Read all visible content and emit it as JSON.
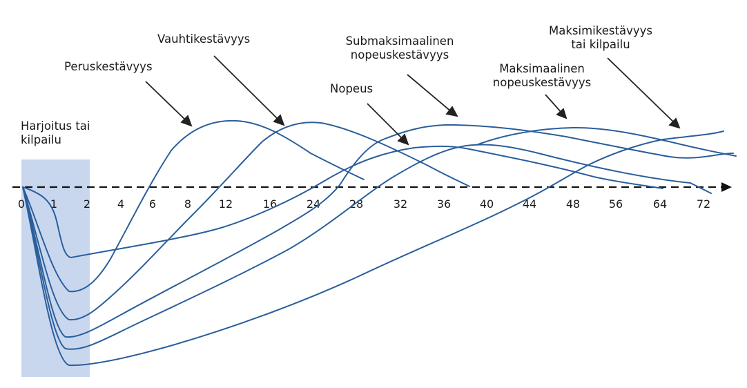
{
  "diagram": {
    "x_axis": {
      "tick_labels": [
        "0",
        "1",
        "2",
        "4",
        "6",
        "8",
        "12",
        "16",
        "24",
        "28",
        "32",
        "36",
        "40",
        "44",
        "48",
        "56",
        "64",
        "72"
      ]
    },
    "workout_label": {
      "lines": [
        "Harjoitus tai",
        "kilpailu"
      ]
    },
    "curve_labels": [
      {
        "id": "perus",
        "lines": [
          "Peruskestävyys"
        ]
      },
      {
        "id": "vauhti",
        "lines": [
          "Vauhtikestävyys"
        ]
      },
      {
        "id": "nopeus",
        "lines": [
          "Nopeus"
        ]
      },
      {
        "id": "submax",
        "lines": [
          "Submaksimaalinen",
          "nopeuskestävyys"
        ]
      },
      {
        "id": "maxnop",
        "lines": [
          "Maksimaalinen",
          "nopeuskestävyys"
        ]
      },
      {
        "id": "maxkest",
        "lines": [
          "Maksimikestävyys",
          "tai kilpailu"
        ]
      }
    ],
    "colors": {
      "curve": "#2a5e9c",
      "arrow": "#222222",
      "axis": "#111111",
      "shade": "#c9d7ee"
    }
  }
}
